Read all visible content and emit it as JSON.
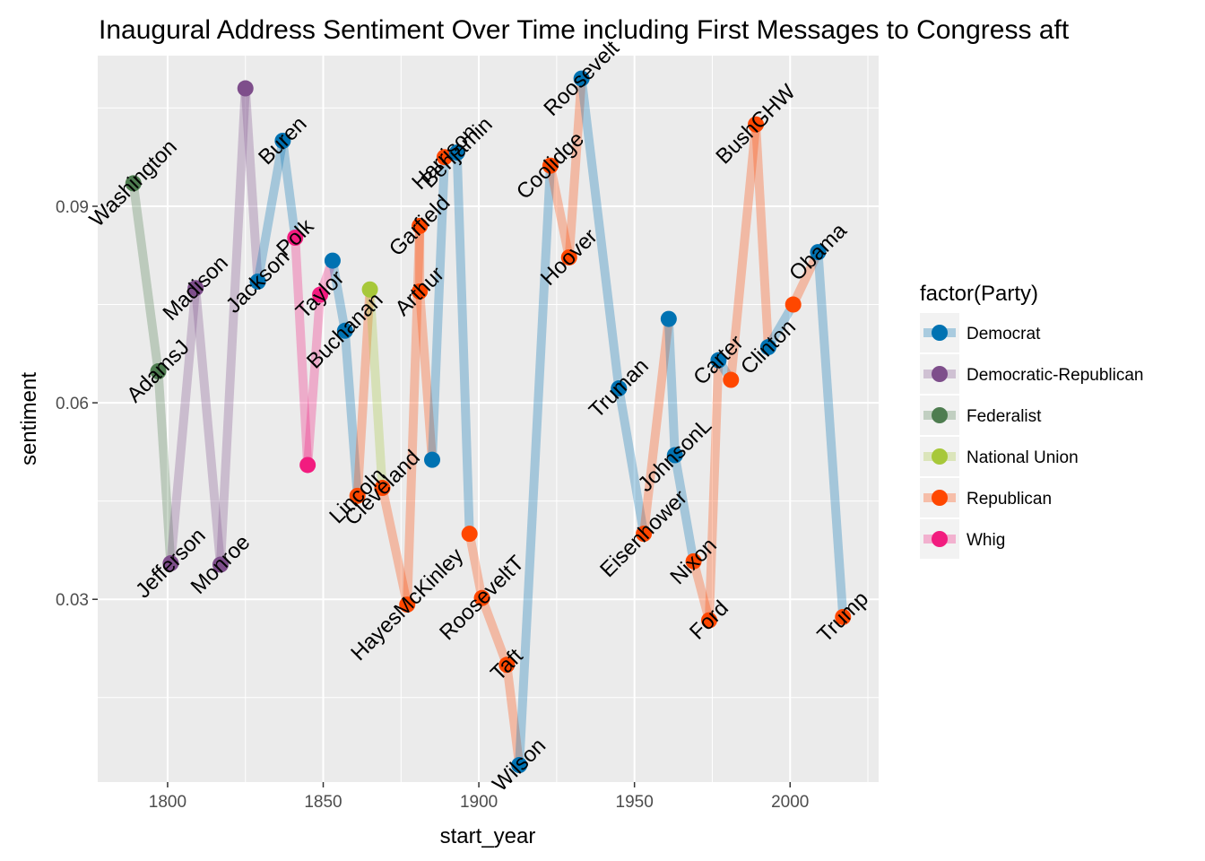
{
  "chart_data": {
    "type": "line",
    "title": "Inaugural Address Sentiment Over Time including First Messages to Congress aft",
    "xlabel": "start_year",
    "ylabel": "sentiment",
    "xlim": [
      1777.55,
      2028.45
    ],
    "ylim": [
      0.0021,
      0.113
    ],
    "x_ticks": [
      1800,
      1850,
      1900,
      1950,
      2000
    ],
    "y_ticks": [
      0.03,
      0.06,
      0.09
    ],
    "y_tick_labels": [
      "0.03",
      "0.06",
      "0.09"
    ],
    "grid": true,
    "legend_position": "right",
    "legend_title": "factor(Party)",
    "parties": [
      {
        "name": "Democrat",
        "color": "#0072b2"
      },
      {
        "name": "Democratic-Republican",
        "color": "#7e4e8b"
      },
      {
        "name": "Federalist",
        "color": "#4e7d50"
      },
      {
        "name": "National Union",
        "color": "#a7c83a"
      },
      {
        "name": "Republican",
        "color": "#ff4700"
      },
      {
        "name": "Whig",
        "color": "#f21c7f"
      }
    ],
    "points": [
      {
        "label": "Washington",
        "x": 1789,
        "y": 0.0935,
        "party": "Federalist"
      },
      {
        "label": "AdamsJ",
        "x": 1797,
        "y": 0.0648,
        "party": "Federalist"
      },
      {
        "label": "Jefferson",
        "x": 1801,
        "y": 0.0355,
        "party": "Democratic-Republican"
      },
      {
        "label": "Madison",
        "x": 1809,
        "y": 0.0775,
        "party": "Democratic-Republican"
      },
      {
        "label": "Monroe",
        "x": 1817,
        "y": 0.0353,
        "party": "Democratic-Republican"
      },
      {
        "label": "",
        "x": 1825,
        "y": 0.108,
        "party": "Democratic-Republican"
      },
      {
        "label": "Jackson",
        "x": 1829,
        "y": 0.0785,
        "party": "Democrat"
      },
      {
        "label": "Buren",
        "x": 1837,
        "y": 0.1,
        "party": "Democrat"
      },
      {
        "label": "Polk",
        "x": 1841,
        "y": 0.0852,
        "party": "Whig"
      },
      {
        "label": "",
        "x": 1845,
        "y": 0.0505,
        "party": "Whig"
      },
      {
        "label": "Taylor",
        "x": 1849,
        "y": 0.0765,
        "party": "Whig"
      },
      {
        "label": "",
        "x": 1853,
        "y": 0.0817,
        "party": "Democrat"
      },
      {
        "label": "Buchanan",
        "x": 1857,
        "y": 0.071,
        "party": "Democrat"
      },
      {
        "label": "Lincoln",
        "x": 1861,
        "y": 0.0458,
        "party": "Republican"
      },
      {
        "label": "",
        "x": 1865,
        "y": 0.0773,
        "party": "National Union"
      },
      {
        "label": "Cleveland",
        "x": 1869,
        "y": 0.047,
        "party": "Republican"
      },
      {
        "label": "HayesMcKinley",
        "x": 1877,
        "y": 0.0292,
        "party": "Republican"
      },
      {
        "label": "Garfield",
        "x": 1881,
        "y": 0.087,
        "party": "Republican"
      },
      {
        "label": "Arthur",
        "x": 1881,
        "y": 0.077,
        "party": "Republican"
      },
      {
        "label": "",
        "x": 1885,
        "y": 0.0513,
        "party": "Democrat"
      },
      {
        "label": "Harrison",
        "x": 1889,
        "y": 0.0975,
        "party": "Republican"
      },
      {
        "label": "Benjamin",
        "x": 1893,
        "y": 0.0982,
        "party": "Democrat"
      },
      {
        "label": "",
        "x": 1897,
        "y": 0.04,
        "party": "Republican"
      },
      {
        "label": "RooseveltT",
        "x": 1901,
        "y": 0.0302,
        "party": "Republican"
      },
      {
        "label": "Taft",
        "x": 1909,
        "y": 0.02,
        "party": "Republican"
      },
      {
        "label": "Wilson",
        "x": 1913,
        "y": 0.0047,
        "party": "Democrat"
      },
      {
        "label": "Coolidge",
        "x": 1923,
        "y": 0.0962,
        "party": "Republican"
      },
      {
        "label": "Hoover",
        "x": 1929,
        "y": 0.0822,
        "party": "Republican"
      },
      {
        "label": "Roosevelt",
        "x": 1933,
        "y": 0.1095,
        "party": "Democrat"
      },
      {
        "label": "Truman",
        "x": 1945,
        "y": 0.0622,
        "party": "Democrat"
      },
      {
        "label": "Eisenhower",
        "x": 1953,
        "y": 0.04,
        "party": "Republican"
      },
      {
        "label": "",
        "x": 1961,
        "y": 0.0728,
        "party": "Democrat"
      },
      {
        "label": "JohnsonL",
        "x": 1963,
        "y": 0.052,
        "party": "Democrat"
      },
      {
        "label": "Nixon",
        "x": 1969,
        "y": 0.0358,
        "party": "Republican"
      },
      {
        "label": "Ford",
        "x": 1974,
        "y": 0.0268,
        "party": "Republican"
      },
      {
        "label": "Carter",
        "x": 1977,
        "y": 0.0665,
        "party": "Democrat"
      },
      {
        "label": "",
        "x": 1981,
        "y": 0.0635,
        "party": "Republican"
      },
      {
        "label": "BushGHW",
        "x": 1989,
        "y": 0.1025,
        "party": "Republican"
      },
      {
        "label": "Clinton",
        "x": 1993,
        "y": 0.0685,
        "party": "Democrat"
      },
      {
        "label": "",
        "x": 2001,
        "y": 0.075,
        "party": "Republican"
      },
      {
        "label": "Obama",
        "x": 2009,
        "y": 0.083,
        "party": "Democrat"
      },
      {
        "label": "Trump",
        "x": 2017,
        "y": 0.0273,
        "party": "Republican"
      }
    ]
  }
}
